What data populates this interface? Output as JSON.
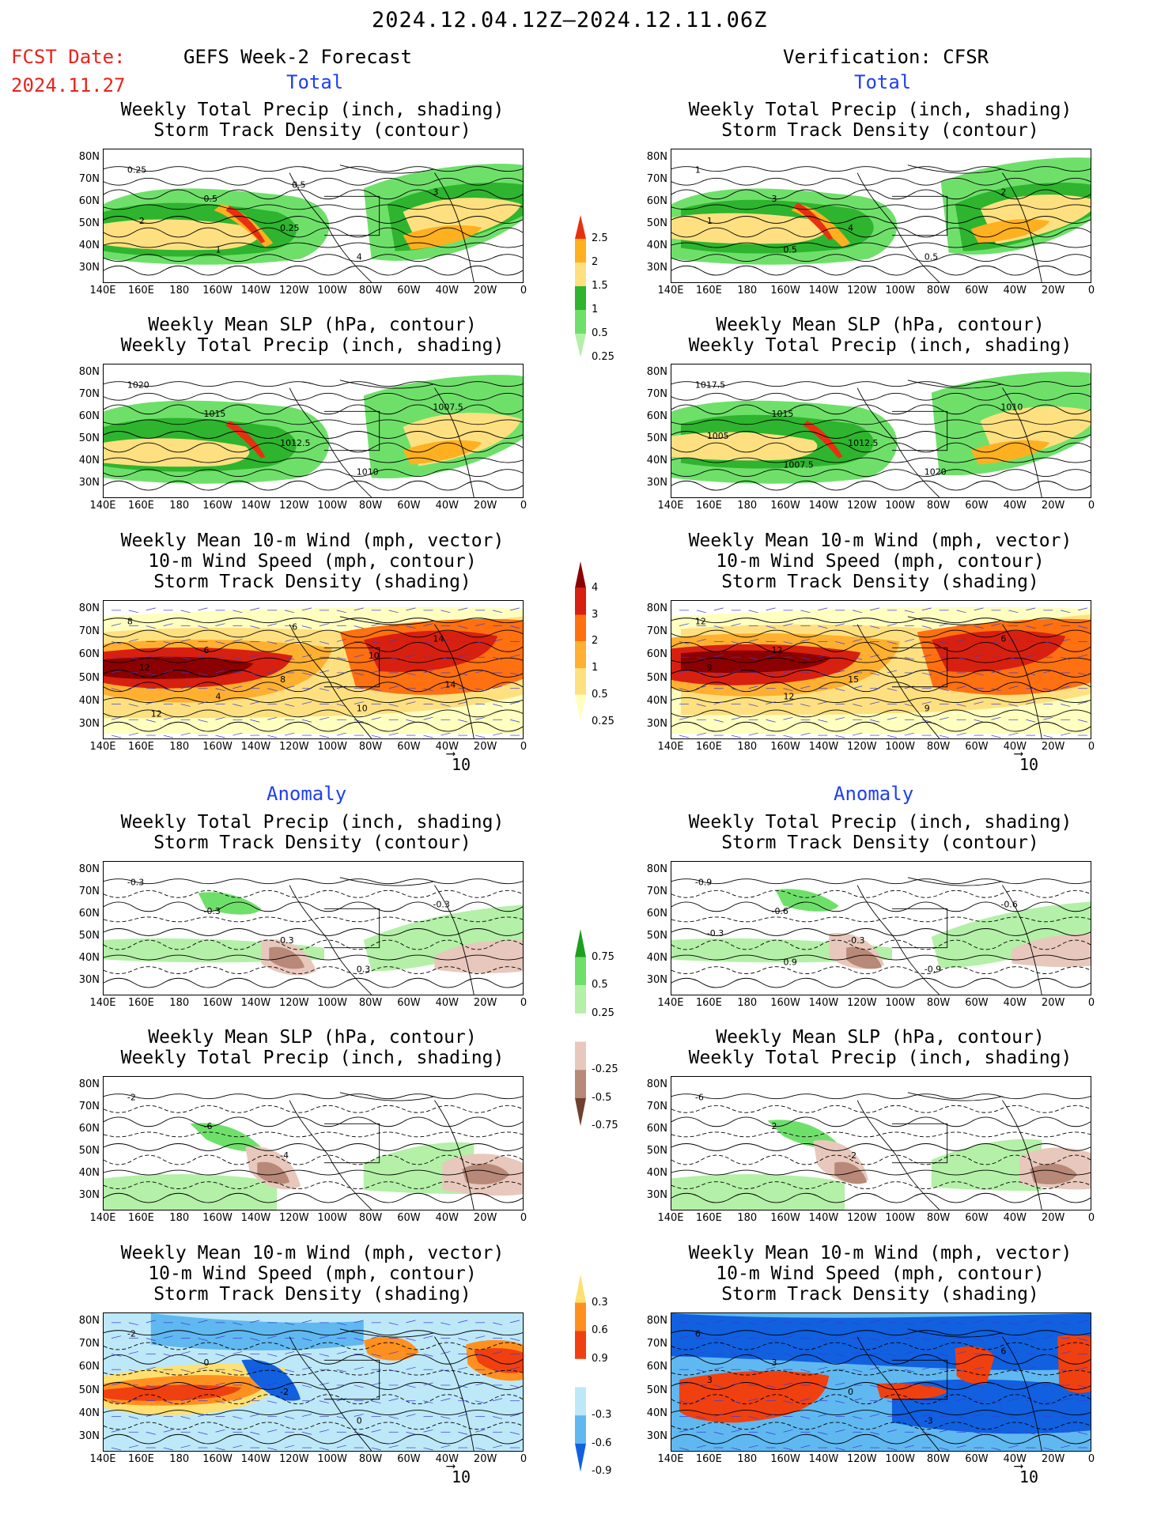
{
  "header": {
    "date_range": "2024.12.04.12Z–2024.12.11.06Z",
    "fcst_label": "FCST Date:",
    "fcst_date": "2024.11.27",
    "left_title": "GEFS Week-2 Forecast",
    "right_title": "Verification: CFSR"
  },
  "sections": {
    "total": "Total",
    "anomaly": "Anomaly"
  },
  "titles": {
    "precip_storm": [
      "Weekly Total Precip (inch, shading)",
      "Storm Track Density (contour)"
    ],
    "slp_precip": [
      "Weekly Mean SLP (hPa, contour)",
      "Weekly Total Precip (inch, shading)"
    ],
    "wind_storm": [
      "Weekly Mean 10-m Wind (mph, vector)",
      "10-m Wind Speed (mph, contour)",
      "Storm Track Density (shading)"
    ]
  },
  "axes": {
    "lat_ticks": [
      "80N",
      "70N",
      "60N",
      "50N",
      "40N",
      "30N"
    ],
    "lon_ticks": [
      "140E",
      "160E",
      "180",
      "160W",
      "140W",
      "120W",
      "100W",
      "80W",
      "60W",
      "40W",
      "20W",
      "0"
    ]
  },
  "vector_ref": "10",
  "colorbars": {
    "precip_total": {
      "labels": [
        "0.25",
        "0.5",
        "1",
        "1.5",
        "2",
        "2.5"
      ],
      "colors": [
        "#b4f0a8",
        "#6ee06a",
        "#2eb42e",
        "#ffe080",
        "#ffb020",
        "#e83010"
      ]
    },
    "storm_total": {
      "labels": [
        "0.25",
        "0.5",
        "1",
        "2",
        "3",
        "4"
      ],
      "colors": [
        "#ffffc0",
        "#ffe080",
        "#ffb030",
        "#ff7010",
        "#d82010",
        "#8b0000"
      ]
    },
    "precip_anom": {
      "labels": [
        "0.25",
        "0.5",
        "0.75",
        "-0.25",
        "-0.5",
        "-0.75"
      ],
      "colors": [
        "#b4f0a8",
        "#6ee06a",
        "#1ea01e",
        "#e8c8bc",
        "#b88878",
        "#6e4030"
      ]
    },
    "storm_anom": {
      "labels": [
        "0.9",
        "0.6",
        "0.3",
        "-0.3",
        "-0.6",
        "-0.9"
      ],
      "colors": [
        "#f04010",
        "#ff9020",
        "#ffe070",
        "#bde8f8",
        "#60b8f0",
        "#1060e0"
      ]
    }
  },
  "panel_labels": {
    "left_precip_total": [
      "0.25",
      "0.5",
      "0.25",
      "4",
      "3",
      "2",
      "1",
      "0.5"
    ],
    "right_precip_total": [
      "1",
      "3",
      "4",
      "0.5",
      "2",
      "1",
      "0.5"
    ],
    "left_slp_total": [
      "1020",
      "1015",
      "1012.5",
      "1010",
      "1007.5"
    ],
    "right_slp_total": [
      "1017.5",
      "1015",
      "1012.5",
      "1020",
      "1010",
      "1005",
      "1007.5"
    ],
    "left_wind_total": [
      "8",
      "6",
      "8",
      "10",
      "14",
      "12",
      "4",
      "6",
      "10",
      "14",
      "12"
    ],
    "right_wind_total": [
      "12",
      "12",
      "15",
      "9",
      "6",
      "9",
      "12"
    ],
    "left_precip_anom": [
      "-0.3",
      "-0.3",
      "0.3",
      "0.3",
      "-0.3"
    ],
    "right_precip_anom": [
      "-0.9",
      "-0.6",
      "-0.3",
      "-0.9",
      "-0.6",
      "-0.3",
      "0.9"
    ],
    "left_slp_anom": [
      "-2",
      "-6",
      "-4"
    ],
    "right_slp_anom": [
      "-6",
      "2",
      "-2"
    ],
    "left_wind_anom": [
      "-2",
      "0",
      "-2",
      "0"
    ],
    "right_wind_anom": [
      "6",
      "3",
      "0",
      "-3",
      "6",
      "3"
    ]
  }
}
